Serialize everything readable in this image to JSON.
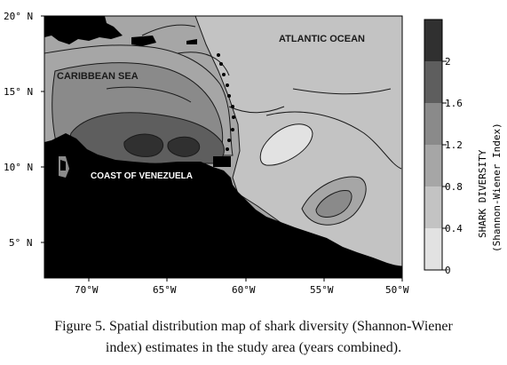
{
  "map": {
    "labels": {
      "atlantic": "ATLANTIC OCEAN",
      "caribbean": "CARIBBEAN SEA",
      "coast": "COAST OF VENEZUELA"
    },
    "lat_ticks": [
      "20° N",
      "15° N",
      "10° N",
      "5° N"
    ],
    "lon_ticks": [
      "70°W",
      "65°W",
      "60°W",
      "55°W",
      "50°W"
    ],
    "colors": {
      "land": "#000000",
      "contour_line": "#1a1a1a"
    }
  },
  "legend": {
    "title_line1": "SHARK DIVERSITY",
    "title_line2": "(Shannon-Wiener Index)",
    "ticks": [
      "2",
      "1.6",
      "1.2",
      "0.8",
      "0.4",
      "0"
    ],
    "classes": [
      {
        "range": "0-0.4",
        "color": "#e2e2e2"
      },
      {
        "range": "0.4-0.8",
        "color": "#c3c3c3"
      },
      {
        "range": "0.8-1.2",
        "color": "#a6a6a6"
      },
      {
        "range": "1.2-1.6",
        "color": "#8a8a8a"
      },
      {
        "range": "1.6-2",
        "color": "#5e5e5e"
      },
      {
        "range": ">2",
        "color": "#303030"
      }
    ]
  },
  "caption": {
    "line1": "Figure 5. Spatial distribution map of shark diversity  (Shannon-Wiener",
    "line2": "index) estimates in the study area (years combined)."
  }
}
